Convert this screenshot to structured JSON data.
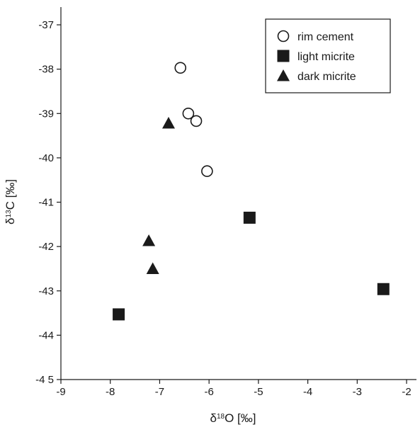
{
  "chart_data": {
    "type": "scatter",
    "xlabel": {
      "prefix": "δ",
      "sup": "18",
      "main": "O [‰]"
    },
    "ylabel": {
      "prefix": "δ",
      "sup": "13",
      "main": "C [‰]"
    },
    "xlim": [
      -9,
      -1.8
    ],
    "ylim": [
      -45,
      -36.6
    ],
    "xticks": [
      -9,
      -8,
      -7,
      -6,
      -5,
      -4,
      -3,
      -2
    ],
    "yticks": [
      -45,
      -44,
      -43,
      -42,
      -41,
      -40,
      -39,
      -38,
      -37
    ],
    "xtick_labels": [
      "-9",
      "-8",
      "-7",
      "-6",
      "-5",
      "-4",
      "-3",
      "-2"
    ],
    "ytick_labels": [
      "-4 5",
      "-44",
      "-43",
      "-42",
      "-41",
      "-40",
      "-39",
      "-38",
      "-37"
    ],
    "grid": false,
    "legend_position": "top-right",
    "series": [
      {
        "name": "rim cement",
        "marker": "circle-open",
        "color": "#1a1a1a",
        "points": [
          [
            -6.58,
            -37.97
          ],
          [
            -6.42,
            -39.0
          ],
          [
            -6.26,
            -39.17
          ],
          [
            -6.04,
            -40.3
          ]
        ]
      },
      {
        "name": "light micrite",
        "marker": "square",
        "color": "#1a1a1a",
        "points": [
          [
            -7.83,
            -43.53
          ],
          [
            -5.18,
            -41.35
          ],
          [
            -2.47,
            -42.96
          ]
        ]
      },
      {
        "name": "dark micrite",
        "marker": "triangle",
        "color": "#1a1a1a",
        "points": [
          [
            -6.82,
            -39.22
          ],
          [
            -7.22,
            -41.87
          ],
          [
            -7.14,
            -42.5
          ]
        ]
      }
    ]
  }
}
